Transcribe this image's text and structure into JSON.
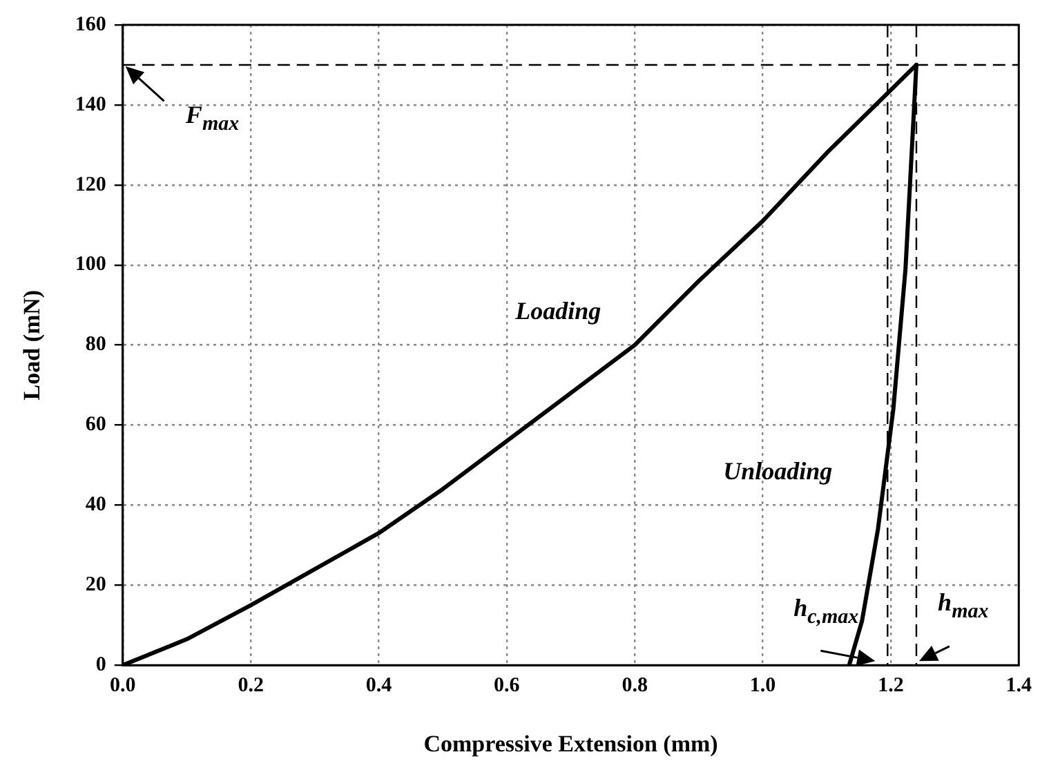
{
  "chart_data": {
    "type": "line",
    "xlabel": "Compressive Extension (mm)",
    "ylabel": "Load (mN)",
    "xlim": [
      0,
      1.4
    ],
    "xticks": [
      {
        "value": 0,
        "label": "0.0"
      },
      {
        "value": 0.2,
        "label": "0.2"
      },
      {
        "value": 0.4,
        "label": "0.4"
      },
      {
        "value": 0.6,
        "label": "0.6"
      },
      {
        "value": 0.8,
        "label": "0.8"
      },
      {
        "value": 1,
        "label": "1.0"
      },
      {
        "value": 1.2,
        "label": "1.2"
      },
      {
        "value": 1.4,
        "label": "1.4"
      }
    ],
    "ylim": [
      0,
      160
    ],
    "yticks": [
      0,
      20,
      40,
      60,
      80,
      100,
      120,
      140,
      160
    ],
    "grid": true,
    "marker": "none",
    "line_style": "solid",
    "series": [
      {
        "color": "#000000",
        "x": [
          0,
          0.1,
          0.2,
          0.3,
          0.4,
          0.5,
          0.6,
          0.7,
          0.8,
          0.9,
          1.0,
          1.1,
          1.24
        ],
        "values": [
          0,
          6.5,
          15,
          24,
          33,
          44,
          56,
          68,
          80,
          96,
          111,
          128,
          150
        ]
      },
      {
        "color": "#000000",
        "x": [
          1.24,
          1.223,
          1.204,
          1.18,
          1.155,
          1.135
        ],
        "values": [
          150,
          99,
          64,
          34,
          11,
          0
        ]
      }
    ],
    "ref_lines": [
      {
        "axis": "y",
        "value": 150,
        "line_style": "dashed",
        "color": "#000000"
      },
      {
        "axis": "x",
        "value": 1.195,
        "line_style": "dashed",
        "color": "#000000"
      },
      {
        "axis": "x",
        "value": 1.24,
        "line_style": "dashed",
        "color": "#000000"
      }
    ],
    "annotations": [
      "Loading",
      "Unloading",
      "F$_{max}$",
      "h$_{c,max}$",
      "h$_{max}$"
    ]
  }
}
